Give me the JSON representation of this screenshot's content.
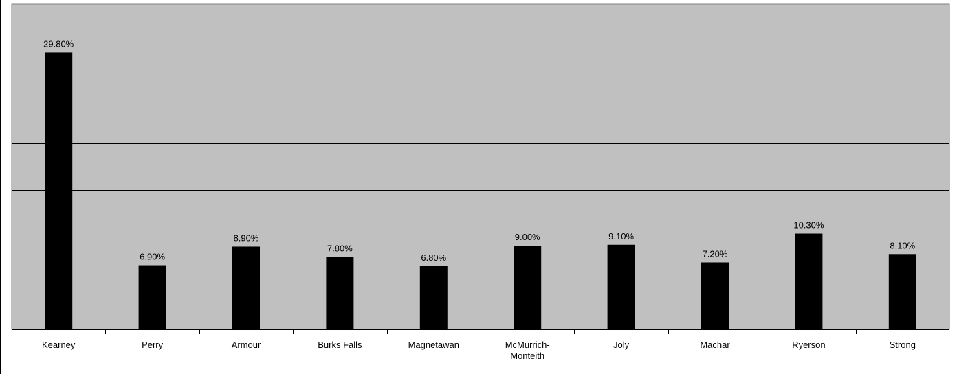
{
  "chart_data": {
    "type": "bar",
    "title": "",
    "xlabel": "",
    "ylabel": "",
    "categories": [
      [
        "Kearney"
      ],
      [
        "Perry"
      ],
      [
        "Armour"
      ],
      [
        "Burks Falls"
      ],
      [
        "Magnetawan"
      ],
      [
        "McMurrich-",
        "Monteith"
      ],
      [
        "Joly"
      ],
      [
        "Machar"
      ],
      [
        "Ryerson"
      ],
      [
        "Strong"
      ]
    ],
    "values": [
      29.8,
      6.9,
      8.9,
      7.8,
      6.8,
      9.0,
      9.1,
      7.2,
      10.3,
      8.1
    ],
    "data_labels": [
      "29.80%",
      "6.90%",
      "8.90%",
      "7.80%",
      "6.80%",
      "9.00%",
      "9.10%",
      "7.20%",
      "10.30%",
      "8.10%"
    ],
    "ylim": [
      0,
      35
    ],
    "grid": true,
    "legend": "none",
    "colors": {
      "plot_background": "#c0c0c0",
      "bar": "#000000",
      "gridline": "#000000"
    }
  }
}
